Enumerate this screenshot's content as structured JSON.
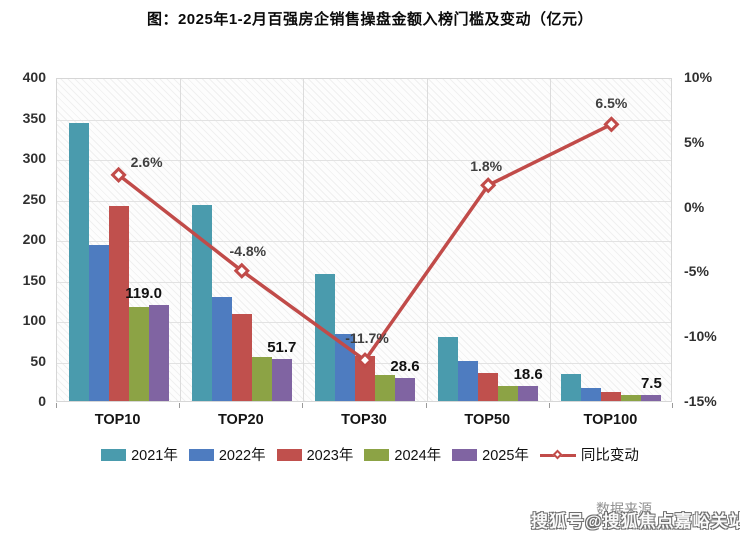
{
  "title": "图：2025年1-2月百强房企销售操盘金额入榜门槛及变动（亿元）",
  "source_text": "数据来源",
  "watermark": "搜狐号@搜狐焦点嘉峪关站",
  "colors": {
    "bar_2021": "#4A9BAD",
    "bar_2022": "#4E7CC0",
    "bar_2023": "#C0504D",
    "bar_2024": "#8CA345",
    "bar_2025": "#8064A2",
    "trend_line": "#C14B49"
  },
  "chart_data": {
    "type": "bar",
    "title": "图：2025年1-2月百强房企销售操盘金额入榜门槛及变动（亿元）",
    "categories": [
      "TOP10",
      "TOP20",
      "TOP30",
      "TOP50",
      "TOP100"
    ],
    "series": [
      {
        "name": "2021年",
        "color": "#4A9BAD",
        "values": [
          343,
          242,
          157,
          79,
          33
        ]
      },
      {
        "name": "2022年",
        "color": "#4E7CC0",
        "values": [
          193,
          128,
          83,
          50,
          16.5
        ]
      },
      {
        "name": "2023年",
        "color": "#C0504D",
        "values": [
          241,
          107,
          56,
          34.5,
          11
        ]
      },
      {
        "name": "2024年",
        "color": "#8CA345",
        "values": [
          116,
          54.3,
          32.4,
          18.3,
          7
        ]
      },
      {
        "name": "2025年",
        "color": "#8064A2",
        "values": [
          119.0,
          51.7,
          28.6,
          18.6,
          7.5
        ]
      }
    ],
    "line_series": {
      "name": "同比变动",
      "color": "#C14B49",
      "values_pct": [
        2.6,
        -4.8,
        -11.7,
        1.8,
        6.5
      ],
      "labels": [
        "2.6%",
        "-4.8%",
        "-11.7%",
        "1.8%",
        "6.5%"
      ]
    },
    "value_labels": [
      "119.0",
      "51.7",
      "28.6",
      "18.6",
      "7.5"
    ],
    "left_axis": {
      "min": 0,
      "max": 400,
      "step": 50,
      "ticks": [
        "400",
        "350",
        "300",
        "250",
        "200",
        "150",
        "100",
        "50",
        "0"
      ]
    },
    "right_axis": {
      "min": -15,
      "max": 10,
      "step": 5,
      "ticks": [
        "10%",
        "5%",
        "0%",
        "-5%",
        "-10%",
        "-15%"
      ]
    },
    "legend_position": "bottom",
    "grid": true,
    "plot_background": "hatched"
  }
}
